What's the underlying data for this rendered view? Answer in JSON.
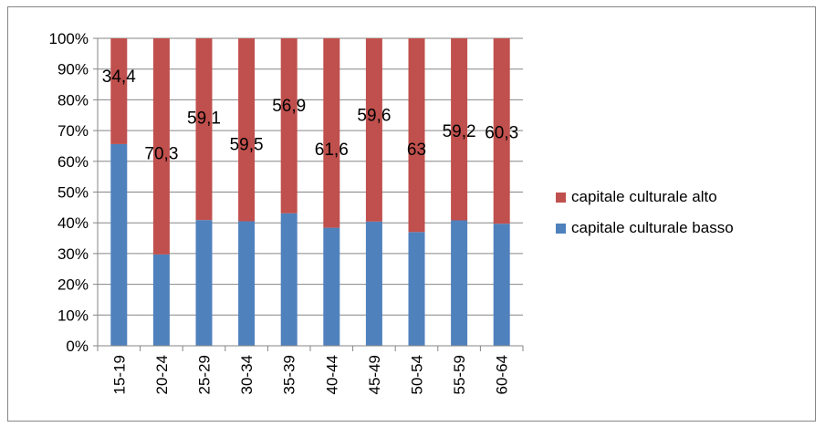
{
  "chart_data": {
    "type": "bar",
    "stacked": true,
    "normalized_percent": true,
    "categories": [
      "15-19",
      "20-24",
      "25-29",
      "30-34",
      "35-39",
      "40-44",
      "45-49",
      "50-54",
      "55-59",
      "60-64"
    ],
    "series": [
      {
        "name": "capitale culturale basso",
        "color": "#4f81bd",
        "values": [
          65.6,
          29.7,
          40.9,
          40.5,
          43.1,
          38.4,
          40.4,
          37.0,
          40.8,
          39.7
        ]
      },
      {
        "name": "capitale culturale alto",
        "color": "#c0504d",
        "values": [
          34.4,
          70.3,
          59.1,
          59.5,
          56.9,
          61.6,
          59.6,
          63.0,
          59.2,
          60.3
        ]
      }
    ],
    "data_labels": [
      "34,4",
      "70,3",
      "59,1",
      "59,5",
      "56,9",
      "61,6",
      "59,6",
      "63",
      "59,2",
      "60,3"
    ],
    "y_ticks": [
      "0%",
      "10%",
      "20%",
      "30%",
      "40%",
      "50%",
      "60%",
      "70%",
      "80%",
      "90%",
      "100%"
    ],
    "ylim": [
      0,
      100
    ],
    "grid": true,
    "legend_position": "right",
    "legend": [
      "capitale culturale alto",
      "capitale culturale basso"
    ],
    "title": "",
    "xlabel": "",
    "ylabel": ""
  }
}
